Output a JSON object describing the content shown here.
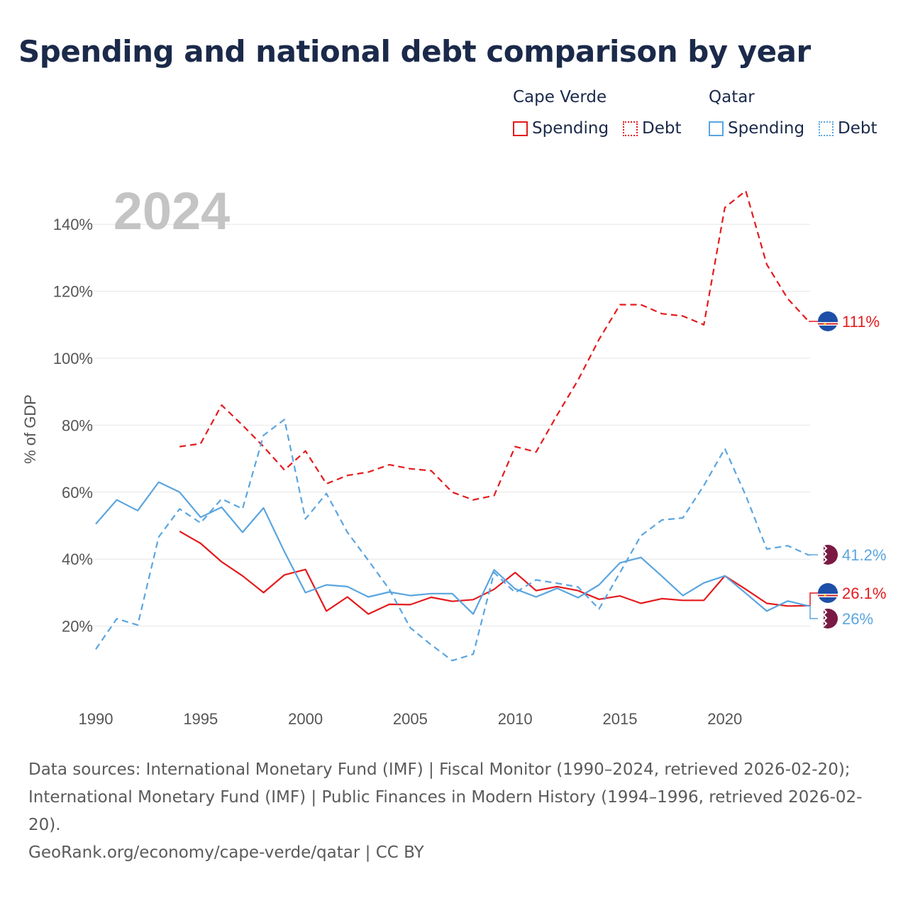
{
  "title": "Spending and national debt comparison by year",
  "legend": {
    "groups": [
      {
        "name": "Cape Verde",
        "color": "#e41a1c",
        "items": [
          {
            "label": "Spending",
            "style": "solid"
          },
          {
            "label": "Debt",
            "style": "dotted"
          }
        ]
      },
      {
        "name": "Qatar",
        "color": "#5aa5e0",
        "items": [
          {
            "label": "Spending",
            "style": "solid"
          },
          {
            "label": "Debt",
            "style": "dotted"
          }
        ]
      }
    ]
  },
  "chart_data": {
    "type": "line",
    "year_label": "2024",
    "ylabel": "% of GDP",
    "xlabel": "",
    "xlim": [
      1990,
      2024
    ],
    "ylim": [
      0,
      150
    ],
    "xticks": [
      1990,
      1995,
      2000,
      2005,
      2010,
      2015,
      2020
    ],
    "xtick_labels": [
      "1990",
      "1995",
      "2000",
      "2005",
      "2010",
      "2015",
      "2020"
    ],
    "yticks": [
      20,
      40,
      60,
      80,
      100,
      120,
      140
    ],
    "ytick_labels": [
      "20%",
      "40%",
      "60%",
      "80%",
      "100%",
      "120%",
      "140%"
    ],
    "grid": true,
    "series": [
      {
        "name": "Cape Verde Spending",
        "country": "Cape Verde",
        "metric": "Spending",
        "color": "#e41a1c",
        "dash": "solid",
        "x": [
          1994,
          1995,
          1996,
          1997,
          1998,
          1999,
          2000,
          2001,
          2002,
          2003,
          2004,
          2005,
          2006,
          2007,
          2008,
          2009,
          2010,
          2011,
          2012,
          2013,
          2014,
          2015,
          2016,
          2017,
          2018,
          2019,
          2020,
          2021,
          2022,
          2023,
          2024
        ],
        "values": [
          48.3,
          44.7,
          39.2,
          35.0,
          30.0,
          35.3,
          36.9,
          24.5,
          28.7,
          23.6,
          26.5,
          26.4,
          28.6,
          27.4,
          27.9,
          31.0,
          36.0,
          30.6,
          31.8,
          30.6,
          28.0,
          29.0,
          26.8,
          28.2,
          27.7,
          27.7,
          35.0,
          31.0,
          26.8,
          26.0,
          26.1
        ]
      },
      {
        "name": "Cape Verde Debt",
        "country": "Cape Verde",
        "metric": "Debt",
        "color": "#e41a1c",
        "dash": "dashed",
        "x": [
          1994,
          1995,
          1996,
          1997,
          1998,
          1999,
          2000,
          2001,
          2002,
          2003,
          2004,
          2005,
          2006,
          2007,
          2008,
          2009,
          2010,
          2011,
          2012,
          2013,
          2014,
          2015,
          2016,
          2017,
          2018,
          2019,
          2020,
          2021,
          2022,
          2023,
          2024
        ],
        "values": [
          73.6,
          74.5,
          86.0,
          80.0,
          73.6,
          66.6,
          72.3,
          62.5,
          65.0,
          66.0,
          68.2,
          67.0,
          66.4,
          60.0,
          57.7,
          59.0,
          73.6,
          72.0,
          83.0,
          93.5,
          105.6,
          116.0,
          116.0,
          113.3,
          112.6,
          110.0,
          145.0,
          150.0,
          128.0,
          117.8,
          111.0
        ]
      },
      {
        "name": "Qatar Spending",
        "country": "Qatar",
        "metric": "Spending",
        "color": "#5aa5e0",
        "dash": "solid",
        "x": [
          1990,
          1991,
          1992,
          1993,
          1994,
          1995,
          1996,
          1997,
          1998,
          1999,
          2000,
          2001,
          2002,
          2003,
          2004,
          2005,
          2006,
          2007,
          2008,
          2009,
          2010,
          2011,
          2012,
          2013,
          2014,
          2015,
          2016,
          2017,
          2018,
          2019,
          2020,
          2021,
          2022,
          2023,
          2024
        ],
        "values": [
          50.5,
          57.7,
          54.5,
          63.0,
          60.0,
          52.5,
          55.5,
          48.0,
          55.3,
          42.2,
          30.0,
          32.3,
          31.8,
          28.7,
          30.2,
          29.1,
          29.7,
          29.7,
          23.6,
          36.8,
          31.1,
          28.7,
          31.3,
          28.5,
          32.3,
          38.9,
          40.5,
          34.9,
          29.1,
          32.9,
          35.0,
          29.8,
          24.5,
          27.5,
          26.0
        ]
      },
      {
        "name": "Qatar Debt",
        "country": "Qatar",
        "metric": "Debt",
        "color": "#5aa5e0",
        "dash": "dashed",
        "x": [
          1990,
          1991,
          1992,
          1993,
          1994,
          1995,
          1996,
          1997,
          1998,
          1999,
          2000,
          2001,
          2002,
          2003,
          2004,
          2005,
          2006,
          2007,
          2008,
          2009,
          2010,
          2011,
          2012,
          2013,
          2014,
          2015,
          2016,
          2017,
          2018,
          2019,
          2020,
          2021,
          2022,
          2023,
          2024
        ],
        "values": [
          13.1,
          22.2,
          20.3,
          46.6,
          55.0,
          50.8,
          58.0,
          55.0,
          77.0,
          81.7,
          52.0,
          59.6,
          48.0,
          39.6,
          31.0,
          19.5,
          14.4,
          9.7,
          11.6,
          36.0,
          30.0,
          33.8,
          32.8,
          31.7,
          25.1,
          36.0,
          47.0,
          51.7,
          52.3,
          62.0,
          73.0,
          59.0,
          43.0,
          44.0,
          41.2
        ]
      }
    ],
    "end_labels": [
      {
        "text": "111%",
        "series": "Cape Verde Debt",
        "country": "Cape Verde",
        "value": 111,
        "color": "#e41a1c"
      },
      {
        "text": "41.2%",
        "series": "Qatar Debt",
        "country": "Qatar",
        "value": 41.2,
        "color": "#5aa5e0"
      },
      {
        "text": "26.1%",
        "series": "Cape Verde Spending",
        "country": "Cape Verde",
        "value": 26.1,
        "color": "#e41a1c"
      },
      {
        "text": "26%",
        "series": "Qatar Spending",
        "country": "Qatar",
        "value": 26,
        "color": "#5aa5e0"
      }
    ]
  },
  "footer": {
    "sources": "Data sources: International Monetary Fund (IMF) | Fiscal Monitor (1990–2024, retrieved 2026-02-20); International Monetary Fund (IMF) | Public Finances in Modern History (1994–1996, retrieved 2026-02-20).",
    "credit": "GeoRank.org/economy/cape-verde/qatar | CC BY"
  }
}
